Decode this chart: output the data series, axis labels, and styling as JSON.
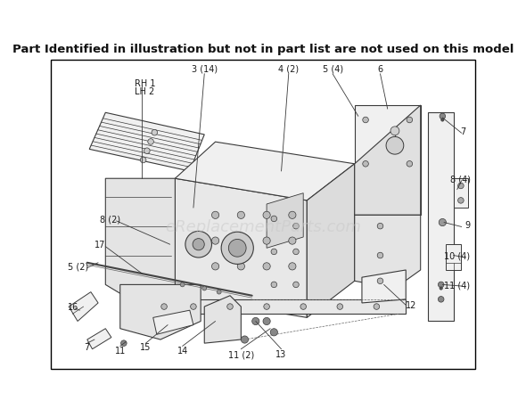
{
  "title": "Part Identified in illustration but not in part list are not used on this model",
  "title_fontsize": 9.5,
  "title_bold": true,
  "background_color": "#ffffff",
  "border_color": "#000000",
  "watermark": "eReplacementParts.com",
  "watermark_color": "#c8c8c8",
  "watermark_fontsize": 13,
  "watermark_alpha": 0.5,
  "fig_width": 5.9,
  "fig_height": 4.6,
  "dpi": 100,
  "line_color": "#3a3a3a",
  "lw_main": 0.8,
  "lw_thin": 0.5,
  "label_fontsize": 7.0,
  "label_color": "#1a1a1a",
  "part_fill": "#f0f0f0",
  "part_fill2": "#e8e8e8"
}
